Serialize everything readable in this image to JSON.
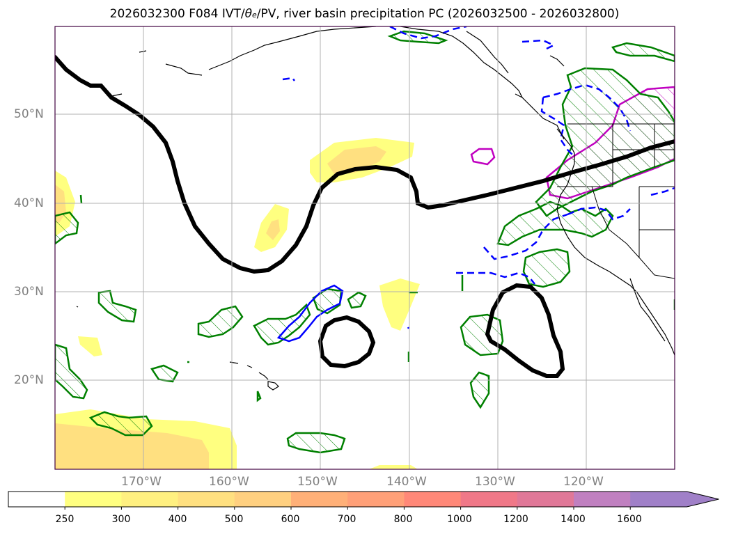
{
  "title": {
    "run": "2026032300",
    "forecast_hour": "F084",
    "fields_prefix": "IVT/",
    "theta_sym": "θ",
    "theta_sub": "e",
    "fields_suffix": "/PV, river basin precipitation PC (2026032500 - 2026032800)"
  },
  "axes": {
    "lat_labels": [
      "50°N",
      "40°N",
      "30°N",
      "20°N"
    ],
    "lon_labels": [
      "170°W",
      "160°W",
      "150°W",
      "140°W",
      "130°W",
      "120°W"
    ]
  },
  "colorbar": {
    "ticks": [
      "250",
      "300",
      "400",
      "500",
      "600",
      "700",
      "800",
      "1000",
      "1200",
      "1400",
      "1600"
    ],
    "colors": [
      "#ffffff",
      "#ffff80",
      "#fff080",
      "#ffe080",
      "#ffd080",
      "#ffb078",
      "#ffa078",
      "#ff8878",
      "#f07888",
      "#e07898",
      "#c080c0",
      "#a080c8"
    ],
    "extend": "max"
  },
  "legend_colors": {
    "ivt_shading": "#ffff80",
    "pv_contour": "#000000",
    "green_hatched": "#008000",
    "blue_contour": "#0000ff",
    "magenta_hatched": "#c000c0"
  }
}
